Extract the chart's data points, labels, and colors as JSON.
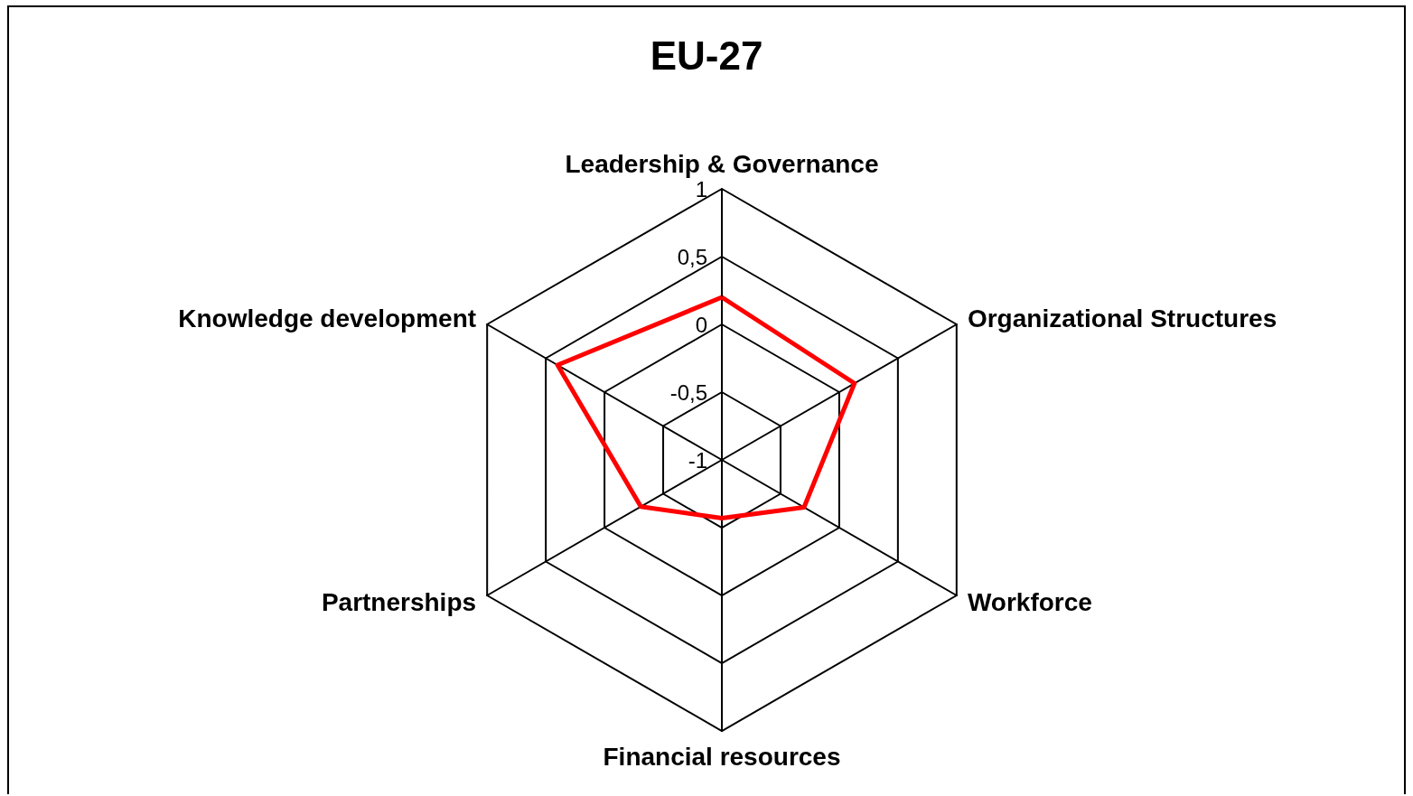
{
  "chart_data": {
    "type": "radar",
    "title": "EU-27",
    "categories": [
      "Leadership & Governance",
      "Organizational Structures",
      "Workforce",
      "Financial resources",
      "Partnerships",
      "Knowledge development"
    ],
    "series": [
      {
        "color": "#ff0000",
        "values": [
          0.2,
          0.13,
          -0.3,
          -0.57,
          -0.31,
          0.4
        ]
      }
    ],
    "ylim": [
      -1,
      1
    ],
    "yticks": [
      -1,
      {
        "value": -0.5,
        "label": "-0,5"
      },
      0,
      {
        "value": 0.5,
        "label": "0,5"
      },
      1
    ],
    "grid": true,
    "legend": false,
    "marker": "none"
  }
}
